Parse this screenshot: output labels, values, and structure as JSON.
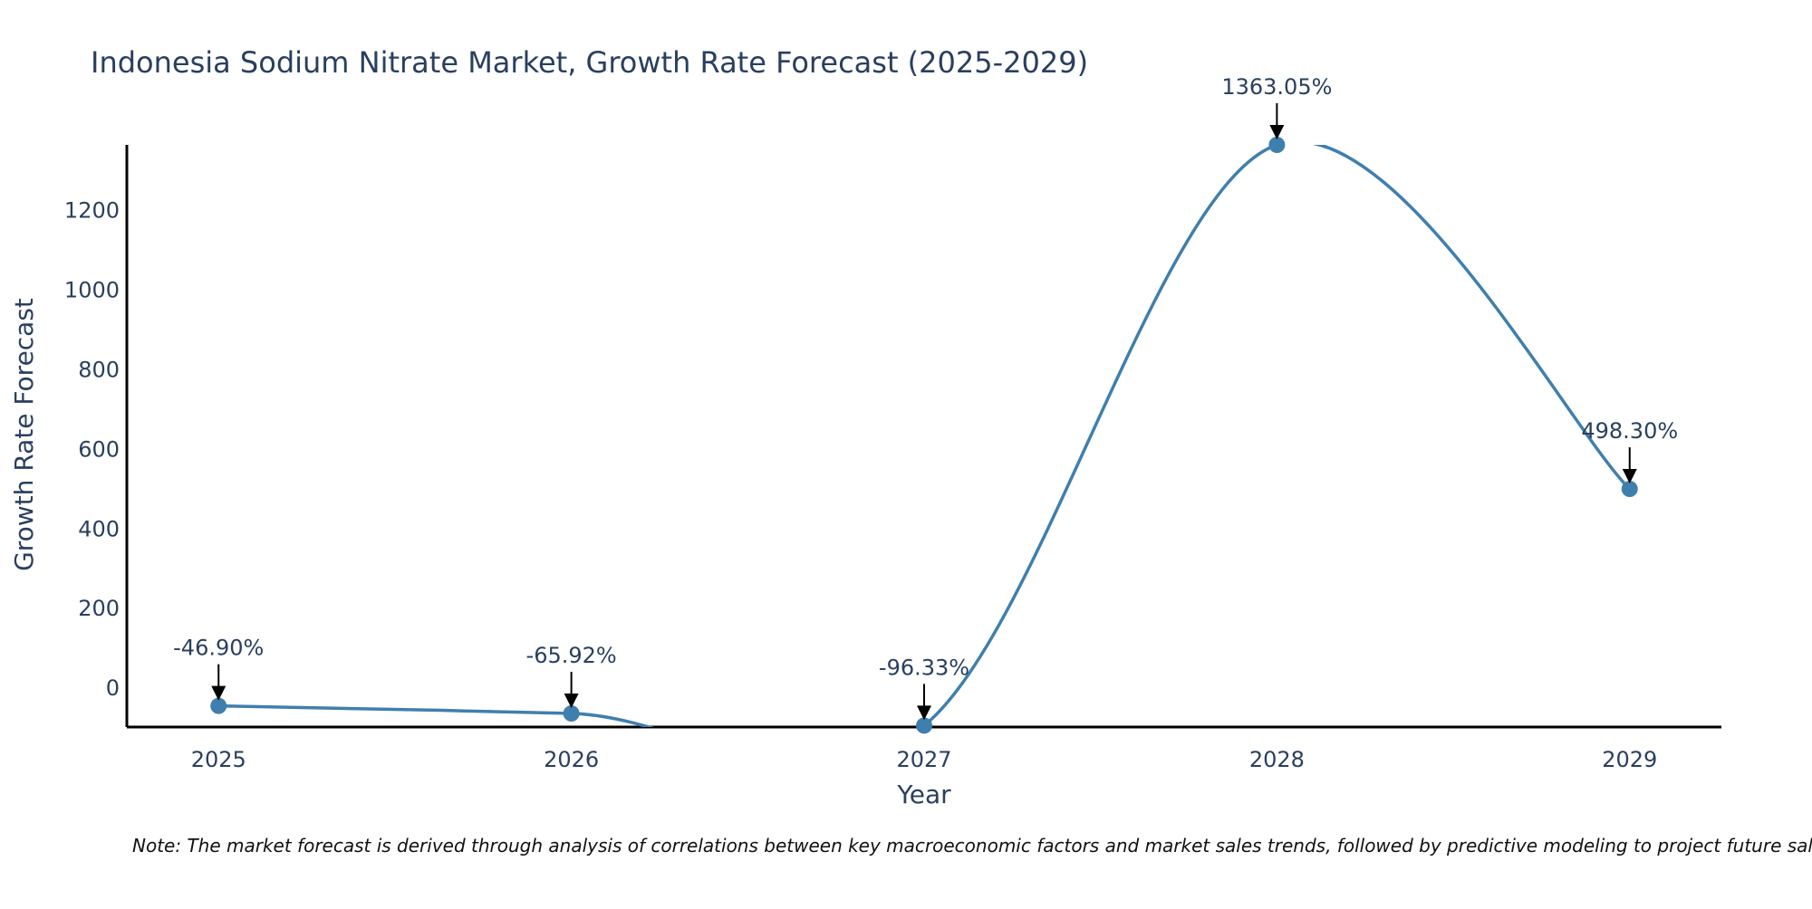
{
  "chart_data": {
    "type": "line",
    "title": "Indonesia Sodium Nitrate Market, Growth Rate Forecast (2025-2029)",
    "xlabel": "Year",
    "ylabel": "Growth Rate Forecast",
    "categories": [
      "2025",
      "2026",
      "2027",
      "2028",
      "2029"
    ],
    "series": [
      {
        "name": "Growth Rate Forecast",
        "values": [
          -46.9,
          -65.92,
          -96.33,
          1363.05,
          498.3
        ]
      }
    ],
    "data_labels": [
      "-46.90%",
      "-65.92%",
      "-96.33%",
      "1363.05%",
      "498.30%"
    ],
    "y_ticks": [
      0,
      200,
      400,
      600,
      800,
      1000,
      1200
    ],
    "y_tick_labels": [
      "0",
      "200",
      "400",
      "600",
      "800",
      "1000",
      "1200"
    ],
    "ylim": [
      -100,
      1363.05
    ],
    "xlim": [
      -0.26,
      4.26
    ],
    "grid": false,
    "legend": "none",
    "note": "Note: The market forecast is derived through analysis of correlations between key macroeconomic factors and market sales trends, followed by predictive modeling to project future sales.",
    "colors": {
      "line": "#3f7fad",
      "marker": "#3f7fad",
      "axis": "#000000",
      "text": "#2a3f5f",
      "arrow": "#000000"
    }
  }
}
